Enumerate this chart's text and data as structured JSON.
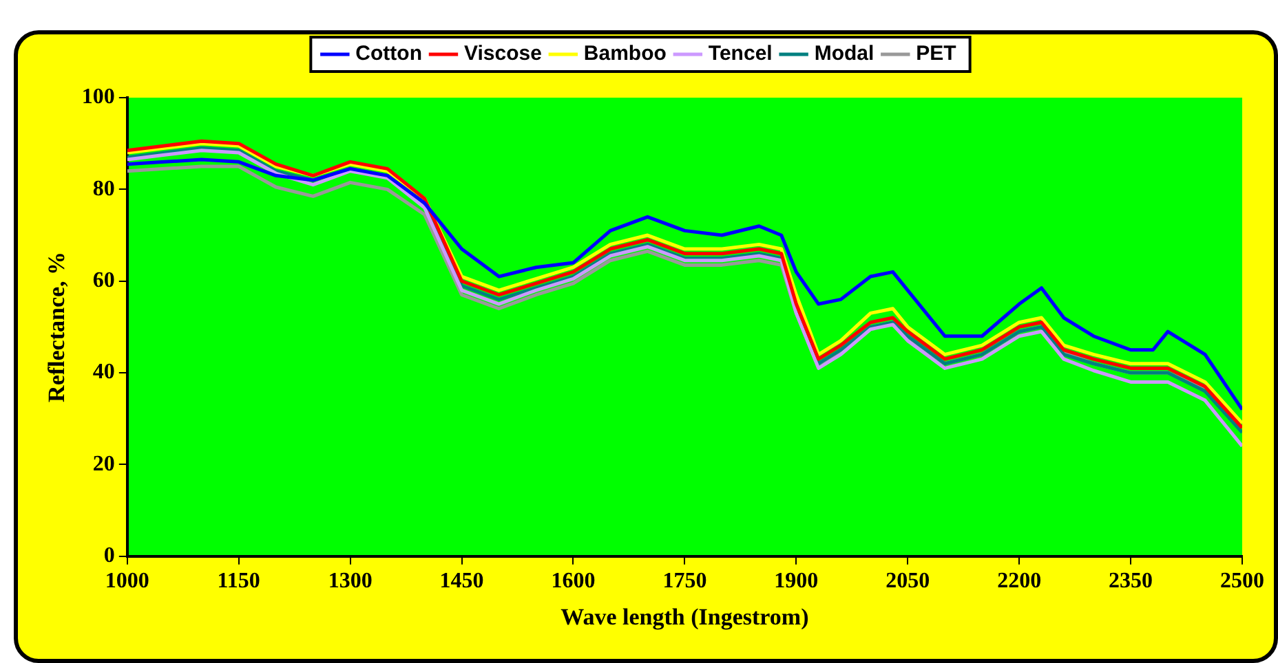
{
  "chart_data": {
    "type": "line",
    "xlabel": "Wave length (Ingestrom)",
    "ylabel": "Reflectance, %",
    "x": [
      1000,
      1050,
      1100,
      1150,
      1200,
      1250,
      1300,
      1350,
      1400,
      1450,
      1500,
      1550,
      1600,
      1650,
      1700,
      1750,
      1800,
      1850,
      1880,
      1900,
      1930,
      1960,
      2000,
      2030,
      2050,
      2100,
      2150,
      2200,
      2230,
      2260,
      2300,
      2350,
      2380,
      2400,
      2450,
      2500
    ],
    "xlim": [
      1000,
      2500
    ],
    "xticks": [
      1000,
      1150,
      1300,
      1450,
      1600,
      1750,
      1900,
      2050,
      2200,
      2350,
      2500
    ],
    "ylim": [
      0,
      100
    ],
    "yticks": [
      0,
      20,
      40,
      60,
      80,
      100
    ],
    "grid": false,
    "legend": "top",
    "marker": "none",
    "line_style": "solid",
    "series": [
      {
        "name": "Cotton",
        "color": "#0000ff",
        "values": [
          85.5,
          86,
          86.5,
          86,
          83,
          82,
          84.5,
          83,
          77,
          67,
          61,
          63,
          64,
          71,
          74,
          71,
          70,
          72,
          70,
          62,
          55,
          56,
          61,
          62,
          58,
          48,
          48,
          55,
          58.5,
          52,
          48,
          45,
          45,
          49,
          44,
          32
        ]
      },
      {
        "name": "Viscose",
        "color": "#ff0000",
        "values": [
          88.5,
          89.5,
          90.5,
          90,
          85.5,
          83,
          86,
          84.5,
          78,
          60,
          57,
          59.5,
          62,
          67,
          69,
          66,
          66,
          67,
          66,
          55,
          43,
          46,
          51,
          52,
          49,
          43,
          45,
          50,
          51,
          45,
          43,
          41,
          41,
          41,
          37,
          28
        ]
      },
      {
        "name": "Bamboo",
        "color": "#ffff00",
        "values": [
          88,
          89,
          90,
          89.5,
          85,
          83,
          85.5,
          84,
          78,
          61,
          58,
          60.5,
          63,
          68,
          70,
          67,
          67,
          68,
          67,
          57,
          44,
          47,
          53,
          54,
          50,
          44,
          46,
          51,
          52,
          46,
          44,
          42,
          42,
          42,
          38,
          29
        ]
      },
      {
        "name": "Tencel",
        "color": "#cc99ff",
        "values": [
          86.5,
          87.5,
          88.5,
          88,
          83.5,
          81,
          84,
          82.5,
          76,
          58,
          55,
          58,
          60.5,
          65.5,
          67.5,
          64.5,
          64.5,
          65.5,
          64.5,
          53,
          41,
          44,
          49.5,
          50.5,
          47,
          41,
          43,
          48,
          49,
          43,
          40.5,
          38,
          38,
          38,
          34,
          24
        ]
      },
      {
        "name": "Modal",
        "color": "#008080",
        "values": [
          87,
          88,
          89,
          88.5,
          84,
          82,
          84.5,
          83,
          77,
          59,
          56,
          58.5,
          61,
          66,
          68,
          65,
          65,
          66,
          65,
          54,
          42,
          45,
          50,
          51,
          48,
          42,
          44,
          49,
          50,
          44,
          42,
          40,
          40,
          40,
          36,
          27
        ]
      },
      {
        "name": "PET",
        "color": "#999999",
        "values": [
          84,
          84.5,
          85,
          85,
          80.5,
          78.5,
          81.5,
          80,
          74.5,
          57,
          54,
          57,
          59.5,
          64.5,
          66.5,
          63.5,
          63.5,
          64.5,
          63.5,
          53,
          42,
          44.5,
          50,
          51,
          47.5,
          42,
          44,
          49,
          50,
          44.5,
          42,
          40,
          40,
          40,
          36.5,
          28
        ]
      }
    ]
  }
}
